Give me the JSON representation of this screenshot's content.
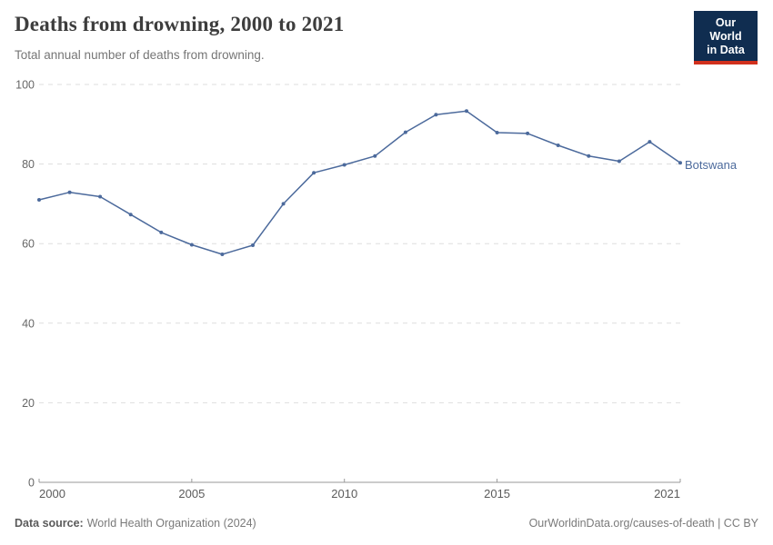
{
  "header": {
    "subtitle": "Total annual number of deaths from drowning.",
    "logo": {
      "line1": "Our World",
      "line2": "in Data",
      "bg_color": "#102d50",
      "accent_color": "#d1301d"
    }
  },
  "chart_data": {
    "type": "line",
    "title": "Deaths from drowning, 2000 to 2021",
    "subtitle": "Total annual number of deaths from drowning.",
    "xlabel": "",
    "ylabel": "",
    "x": [
      2000,
      2001,
      2002,
      2003,
      2004,
      2005,
      2006,
      2007,
      2008,
      2009,
      2010,
      2011,
      2012,
      2013,
      2014,
      2015,
      2016,
      2017,
      2018,
      2019,
      2020,
      2021
    ],
    "series": [
      {
        "name": "Botswana",
        "color": "#4c6a9c",
        "values": [
          71.0,
          72.9,
          71.8,
          67.3,
          62.8,
          59.7,
          57.3,
          59.6,
          70.0,
          77.8,
          79.8,
          82.0,
          88.0,
          92.4,
          93.3,
          87.9,
          87.7,
          84.7,
          82.0,
          80.7,
          85.6,
          80.3
        ]
      }
    ],
    "ylim": [
      0,
      100
    ],
    "yticks": [
      0,
      20,
      40,
      60,
      80,
      100
    ],
    "xticks": [
      2000,
      2005,
      2010,
      2015,
      2021
    ],
    "grid": "horizontal-dashed",
    "grid_color": "#dddddd",
    "axis_color": "#999999",
    "tick_label_color": "#666666",
    "legend_position": "end-of-line-label"
  },
  "footer": {
    "source_label": "Data source:",
    "source_text": "World Health Organization (2024)",
    "credit": "OurWorldinData.org/causes-of-death | CC BY"
  }
}
